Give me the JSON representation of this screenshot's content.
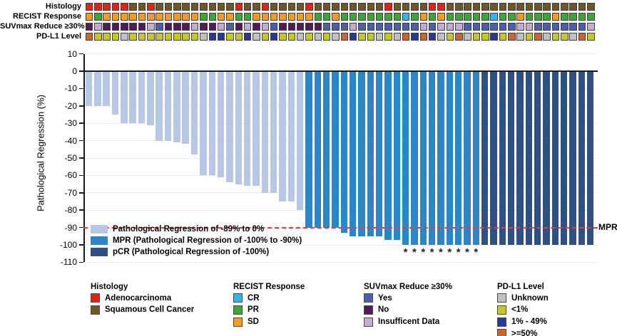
{
  "palette": {
    "adenocarcinoma": "#e02418",
    "squamous": "#6d5826",
    "recist_cr": "#36b3e8",
    "recist_pr": "#3ea538",
    "recist_sd": "#f39c1f",
    "suv_yes": "#4a5fad",
    "suv_no": "#54195a",
    "suv_insufficient": "#c3abd3",
    "pdl1_unknown": "#c1c1c1",
    "pdl1_lt1": "#c5c822",
    "pdl1_1_49": "#28389b",
    "pdl1_ge50": "#d0622b",
    "bar_light": "#b7c7e5",
    "bar_mpr": "#2986c7",
    "bar_pcr": "#2d5185",
    "dashed_line_red": "#ed3833",
    "grid_line": "#e9edf3",
    "axis_black": "#1a1a1a"
  },
  "tracks": {
    "rows": [
      {
        "label": "Histology",
        "color_map": {
          "A": "#e02418",
          "S": "#6d5826"
        },
        "cells": [
          "A",
          "A",
          "A",
          "A",
          "A",
          "S",
          "S",
          "A",
          "S",
          "S",
          "S",
          "S",
          "S",
          "S",
          "S",
          "S",
          "S",
          "A",
          "S",
          "S",
          "A",
          "S",
          "S",
          "S",
          "S",
          "A",
          "S",
          "S",
          "S",
          "S",
          "S",
          "S",
          "S",
          "S",
          "A",
          "S",
          "S",
          "S",
          "S",
          "A",
          "A",
          "S",
          "S",
          "S",
          "S",
          "S",
          "S",
          "S",
          "S",
          "S",
          "S",
          "S",
          "S",
          "S",
          "S",
          "S",
          "S",
          "S"
        ]
      },
      {
        "label": "RECIST Response",
        "color_map": {
          "C": "#36b3e8",
          "G": "#3ea538",
          "O": "#f39c1f"
        },
        "cells": [
          "O",
          "G",
          "O",
          "O",
          "O",
          "O",
          "O",
          "O",
          "O",
          "O",
          "O",
          "O",
          "O",
          "G",
          "G",
          "O",
          "O",
          "G",
          "G",
          "O",
          "O",
          "O",
          "O",
          "O",
          "O",
          "O",
          "G",
          "G",
          "O",
          "G",
          "G",
          "G",
          "G",
          "G",
          "G",
          "G",
          "C",
          "G",
          "O",
          "G",
          "O",
          "G",
          "G",
          "G",
          "G",
          "G",
          "C",
          "G",
          "G",
          "O",
          "G",
          "G",
          "G",
          "O",
          "G",
          "G",
          "G",
          "G"
        ]
      },
      {
        "label": "SUVmax Reduce ≥30%",
        "color_map": {
          "Y": "#4a5fad",
          "N": "#54195a",
          "I": "#c3abd3"
        },
        "cells": [
          "N",
          "I",
          "N",
          "N",
          "N",
          "N",
          "N",
          "I",
          "Y",
          "N",
          "N",
          "N",
          "I",
          "N",
          "N",
          "I",
          "Y",
          "N",
          "I",
          "N",
          "I",
          "Y",
          "N",
          "N",
          "N",
          "N",
          "N",
          "Y",
          "Y",
          "Y",
          "I",
          "Y",
          "Y",
          "Y",
          "Y",
          "Y",
          "Y",
          "Y",
          "I",
          "Y",
          "I",
          "I",
          "I",
          "Y",
          "Y",
          "Y",
          "Y",
          "Y",
          "Y",
          "I",
          "I",
          "Y",
          "Y",
          "Y",
          "Y",
          "Y",
          "Y",
          "I"
        ]
      },
      {
        "label": "PD-L1 Level",
        "color_map": {
          "U": "#c1c1c1",
          "Y": "#c5c822",
          "B": "#28389b",
          "O": "#d0622b"
        },
        "cells": [
          "O",
          "Y",
          "Y",
          "Y",
          "U",
          "Y",
          "Y",
          "Y",
          "Y",
          "Y",
          "Y",
          "Y",
          "Y",
          "U",
          "B",
          "B",
          "Y",
          "Y",
          "B",
          "U",
          "Y",
          "B",
          "Y",
          "Y",
          "U",
          "Y",
          "U",
          "Y",
          "U",
          "O",
          "B",
          "Y",
          "Y",
          "U",
          "Y",
          "U",
          "O",
          "B",
          "O",
          "B",
          "U",
          "Y",
          "O",
          "U",
          "Y",
          "Y",
          "B",
          "Y",
          "O",
          "U",
          "Y",
          "O",
          "U",
          "Y",
          "Y",
          "U",
          "O",
          "Y"
        ]
      }
    ]
  },
  "chart_data": {
    "type": "bar",
    "title": "",
    "xlabel": "",
    "ylabel": "Pathological Regression (%)",
    "ylim": [
      -110,
      10
    ],
    "yticks": [
      10,
      0,
      -10,
      -20,
      -30,
      -40,
      -50,
      -60,
      -70,
      -80,
      -90,
      -100,
      -110
    ],
    "grid": true,
    "values": [
      -20,
      -20,
      -20,
      -25,
      -30,
      -30,
      -30,
      -31,
      -40,
      -40,
      -41,
      -42,
      -48,
      -60,
      -60,
      -61,
      -64,
      -65,
      -66,
      -66,
      -70,
      -70,
      -75,
      -75,
      -80,
      -90,
      -90,
      -90,
      -90,
      -93,
      -95,
      -95,
      -95,
      -95,
      -97,
      -97,
      -100,
      -100,
      -100,
      -100,
      -100,
      -100,
      -100,
      -100,
      -100,
      -100,
      -100,
      -100,
      -100,
      -100,
      -100,
      -100,
      -100,
      -100,
      -100,
      -100,
      -100,
      -100
    ],
    "series_groups": [
      {
        "name": "Pathological Regression of -89% to 0%",
        "color": "#b7c7e5",
        "bar_range": [
          1,
          25
        ]
      },
      {
        "name": "MPR (Pathological Regression of -100% to -90%)",
        "color": "#2986c7",
        "bar_range": [
          26,
          45
        ]
      },
      {
        "name": "pCR (Pathological Regression of -100%)",
        "color": "#2d5185",
        "bar_range": [
          46,
          58
        ]
      }
    ],
    "reference_line": {
      "y": -90,
      "style": "dashed",
      "color": "#ed3833",
      "label": "MPR"
    },
    "asterisk_symbol": "*",
    "asterisk_bars": [
      37,
      38,
      39,
      40,
      41,
      42,
      43,
      44,
      45
    ],
    "legend_position": "inside-bottom-left"
  },
  "bottom_legend": [
    {
      "title": "Histology",
      "items": [
        {
          "color": "#e02418",
          "label": "Adenocarcinoma"
        },
        {
          "color": "#6d5826",
          "label": "Squamous Cell Cancer"
        }
      ]
    },
    {
      "title": "RECIST Response",
      "items": [
        {
          "color": "#36b3e8",
          "label": "CR"
        },
        {
          "color": "#3ea538",
          "label": "PR"
        },
        {
          "color": "#f39c1f",
          "label": "SD"
        }
      ]
    },
    {
      "title": "SUVmax Reduce ≥30%",
      "items": [
        {
          "color": "#4a5fad",
          "label": "Yes"
        },
        {
          "color": "#54195a",
          "label": "No"
        },
        {
          "color": "#c3abd3",
          "label": "Insufficent Data"
        }
      ]
    },
    {
      "title": "PD-L1 Level",
      "items": [
        {
          "color": "#c1c1c1",
          "label": "Unknown"
        },
        {
          "color": "#c5c822",
          "label": "<1%"
        },
        {
          "color": "#28389b",
          "label": "1% - 49%"
        },
        {
          "color": "#d0622b",
          "label": ">=50%"
        }
      ]
    }
  ]
}
